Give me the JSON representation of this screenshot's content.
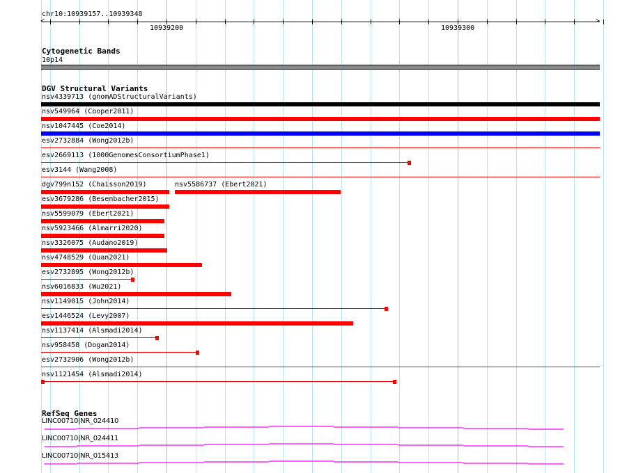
{
  "ruler": {
    "location": "chr10:10939157..10939348",
    "tick_labels": [
      "10939200",
      "10939300"
    ]
  },
  "cytoband": {
    "title": "Cytogenetic Bands",
    "band": "10p14"
  },
  "dgv": {
    "title": "DGV Structural Variants",
    "features": [
      {
        "label": "nsv4339713 (gnomADStructuralVariants)",
        "color": "#000000"
      },
      {
        "label": "nsv549964 (Cooper2011)",
        "color": "#ff0000"
      },
      {
        "label": "nsv1047445 (Coe2014)",
        "color": "#0000ff"
      },
      {
        "label": "esv2732884 (Wong2012b)",
        "color": "#ff0000"
      },
      {
        "label": "esv2669113 (1000GenomesConsortiumPhase1)",
        "color": "#ff0000"
      },
      {
        "label": "esv3144 (Wang2008)",
        "color": "#ff0000"
      },
      {
        "label": "dgv799n152 (Chaisson2019)",
        "color": "#ff0000"
      },
      {
        "label": "nsv5586737 (Ebert2021)",
        "color": "#ff0000"
      },
      {
        "label": "esv3679286 (Besenbacher2015)",
        "color": "#ff0000"
      },
      {
        "label": "nsv5599079 (Ebert2021)",
        "color": "#ff0000"
      },
      {
        "label": "nsv5923466 (Almarri2020)",
        "color": "#ff0000"
      },
      {
        "label": "nsv3326075 (Audano2019)",
        "color": "#ff0000"
      },
      {
        "label": "nsv4748529 (Quan2021)",
        "color": "#ff0000"
      },
      {
        "label": "esv2732895 (Wong2012b)",
        "color": "#ff0000"
      },
      {
        "label": "nsv6016833 (Wu2021)",
        "color": "#ff0000"
      },
      {
        "label": "nsv1149015 (John2014)",
        "color": "#ff0000"
      },
      {
        "label": "esv1446524 (Levy2007)",
        "color": "#ff0000"
      },
      {
        "label": "nsv1137414 (Alsmadi2014)",
        "color": "#ff0000"
      },
      {
        "label": "nsv958458 (Dogan2014)",
        "color": "#ff0000"
      },
      {
        "label": "esv2732906 (Wong2012b)",
        "color": "#ff0000"
      },
      {
        "label": "nsv1121454 (Alsmadi2014)",
        "color": "#ff0000"
      }
    ]
  },
  "refseq": {
    "title": "RefSeq Genes",
    "genes": [
      {
        "label": "LINC00710|NR_024410"
      },
      {
        "label": "LINC00710|NR_024411"
      },
      {
        "label": "LINC00710|NR_015413"
      }
    ],
    "color": "#ff00ff"
  }
}
